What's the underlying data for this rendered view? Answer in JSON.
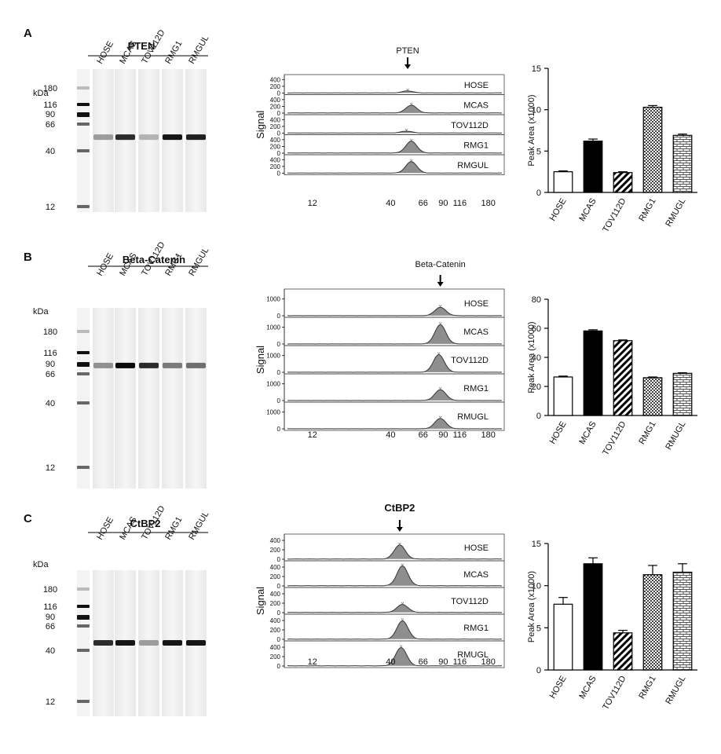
{
  "size_axis": {
    "label": "kDa",
    "ticks": [
      12,
      40,
      66,
      90,
      116,
      180
    ]
  },
  "electropherogram": {
    "ylabel": "Signal"
  },
  "chart_data": [
    {
      "panel": "A",
      "title": "PTEN",
      "samples": [
        "HOSE",
        "MCAS",
        "TOV112D",
        "RMG1",
        "RMGUL"
      ],
      "blot": {
        "band_kDa": 52,
        "intensity": [
          0.35,
          0.85,
          0.25,
          0.95,
          0.9
        ]
      },
      "electropherogram": {
        "type": "line",
        "arrow_label": "PTEN",
        "samples": [
          "HOSE",
          "MCAS",
          "TOV112D",
          "RMG1",
          "RMGUL"
        ],
        "x_ticks": [
          12,
          40,
          66,
          90,
          116,
          180
        ],
        "x_range": [
          9,
          230
        ],
        "y_ticks": [
          0,
          200,
          400
        ],
        "y_range": [
          0,
          500
        ],
        "peak_kDa": [
          52,
          55,
          51,
          55,
          55
        ],
        "peak_height": [
          60,
          230,
          55,
          350,
          340
        ]
      },
      "bar": {
        "type": "bar",
        "ylabel": "Peak Area (x1000)",
        "ylim": [
          0,
          15
        ],
        "yticks": [
          0,
          5,
          10,
          15
        ],
        "categories": [
          "HOSE",
          "MCAS",
          "TOV112D",
          "RMG1",
          "RMUGL"
        ],
        "values": [
          2.5,
          6.2,
          2.4,
          10.3,
          6.9
        ],
        "errors": [
          0.1,
          0.25,
          0.1,
          0.2,
          0.15
        ]
      }
    },
    {
      "panel": "B",
      "title": "Beta-Catenin",
      "samples": [
        "HOSE",
        "MCAS",
        "TOV112D",
        "RMG1",
        "RMGUL"
      ],
      "blot": {
        "band_kDa": 86,
        "intensity": [
          0.4,
          1.0,
          0.85,
          0.5,
          0.55
        ]
      },
      "electropherogram": {
        "type": "line",
        "arrow_label": "Beta-Catenin",
        "samples": [
          "HOSE",
          "MCAS",
          "TOV112D",
          "RMG1",
          "RMUGL"
        ],
        "x_ticks": [
          12,
          40,
          66,
          90,
          116,
          180
        ],
        "x_range": [
          9,
          230
        ],
        "y_ticks": [
          0,
          1000
        ],
        "y_range": [
          0,
          1500
        ],
        "peak_kDa": [
          86,
          86,
          84,
          86,
          86
        ],
        "peak_height": [
          500,
          1150,
          1050,
          650,
          620
        ]
      },
      "bar": {
        "type": "bar",
        "ylabel": "Peak Area (x1000)",
        "ylim": [
          0,
          80
        ],
        "yticks": [
          0,
          20,
          40,
          60,
          80
        ],
        "categories": [
          "HOSE",
          "MCAS",
          "TOV112D",
          "RMG1",
          "RMUGL"
        ],
        "values": [
          26.5,
          58.2,
          51.5,
          26.0,
          29.0
        ],
        "errors": [
          0.6,
          0.8,
          0.5,
          0.5,
          0.4
        ]
      }
    },
    {
      "panel": "C",
      "title": "CtBP2",
      "samples": [
        "HOSE",
        "MCAS",
        "TOV112D",
        "RMG1",
        "RMGUL"
      ],
      "blot": {
        "band_kDa": 47,
        "intensity": [
          0.85,
          0.95,
          0.35,
          0.95,
          0.95
        ]
      },
      "electropherogram": {
        "type": "line",
        "arrow_label": "CtBP2",
        "samples": [
          "HOSE",
          "MCAS",
          "TOV112D",
          "RMG1",
          "RMUGL"
        ],
        "x_ticks": [
          12,
          40,
          66,
          90,
          116,
          180
        ],
        "x_range": [
          9,
          230
        ],
        "y_ticks": [
          0,
          200,
          400
        ],
        "y_range": [
          0,
          500
        ],
        "peak_kDa": [
          46,
          48,
          48,
          48,
          47
        ],
        "peak_height": [
          300,
          420,
          170,
          390,
          390
        ]
      },
      "bar": {
        "type": "bar",
        "ylabel": "Peak Area (x1000)",
        "ylim": [
          0,
          15
        ],
        "yticks": [
          0,
          5,
          10,
          15
        ],
        "categories": [
          "HOSE",
          "MCAS",
          "TOV112D",
          "RMG1",
          "RMUGL"
        ],
        "values": [
          7.8,
          12.6,
          4.4,
          11.3,
          11.6
        ],
        "errors": [
          0.8,
          0.7,
          0.3,
          1.1,
          1.0
        ]
      }
    }
  ]
}
